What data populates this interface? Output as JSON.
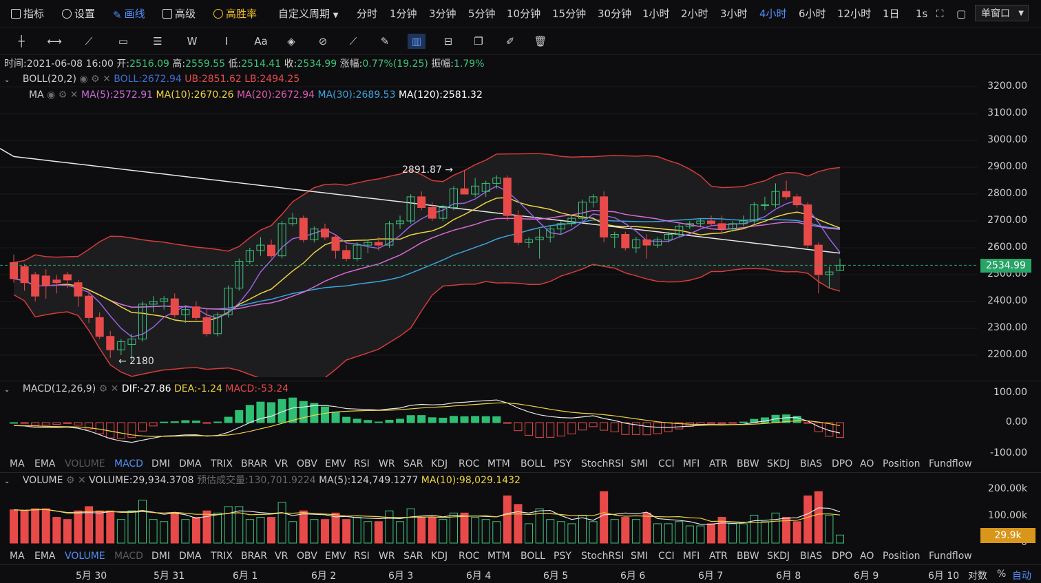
{
  "toolbar": {
    "indicators": "指标",
    "settings": "设置",
    "draw": "画线",
    "advanced": "高级",
    "winrate": "高胜率",
    "custom_period": "自定义周期",
    "periods": [
      "分时",
      "1分钟",
      "3分钟",
      "5分钟",
      "10分钟",
      "15分钟",
      "30分钟",
      "1小时",
      "2小时",
      "3小时",
      "4小时",
      "6小时",
      "12小时",
      "1日"
    ],
    "active_period": "4小时",
    "sec": "1s",
    "window_mode": "单窗口"
  },
  "ohlc": {
    "time_label": "时间:",
    "time": "2021-06-08 16:00",
    "open_label": "开:",
    "open": "2516.09",
    "high_label": "高:",
    "high": "2559.55",
    "low_label": "低:",
    "low": "2514.41",
    "close_label": "收:",
    "close": "2534.99",
    "change_label": "涨幅:",
    "change": "0.77%(19.25)",
    "amp_label": "振幅:",
    "amp": "1.79%"
  },
  "boll": {
    "name": "BOLL(20,2)",
    "boll": "BOLL:2672.94",
    "ub": "UB:2851.62",
    "lb": "LB:2494.25"
  },
  "ma": {
    "name": "MA",
    "ma5": "MA(5):2572.91",
    "ma10": "MA(10):2670.26",
    "ma20": "MA(20):2672.94",
    "ma30": "MA(30):2689.53",
    "ma120": "MA(120):2581.32"
  },
  "macd": {
    "name": "MACD(12,26,9)",
    "dif": "DIF:-27.86",
    "dea": "DEA:-1.24",
    "macd": "MACD:-53.24"
  },
  "volume": {
    "name": "VOLUME",
    "vol": "VOLUME:29,934.3708",
    "est": "预估成交量:130,701.9224",
    "ma5": "MA(5):124,749.1277",
    "ma10": "MA(10):98,029.1432"
  },
  "price_axis": [
    "3200.00",
    "3100.00",
    "3000.00",
    "2900.00",
    "2800.00",
    "2700.00",
    "2600.00",
    "2500.00",
    "2400.00",
    "2300.00",
    "2200.00"
  ],
  "current_price": "2534.99",
  "macd_axis": [
    "100.00",
    "0.00",
    "-100.00"
  ],
  "vol_axis": [
    "200.00k",
    "100.00k",
    "0"
  ],
  "vol_current": "29.9k",
  "annotations": {
    "high": "2891.87 →",
    "low": "← 2180"
  },
  "indicator_tabs": [
    "MA",
    "EMA",
    "VOLUME",
    "MACD",
    "DMI",
    "DMA",
    "TRIX",
    "BRAR",
    "VR",
    "OBV",
    "EMV",
    "RSI",
    "WR",
    "SAR",
    "KDJ",
    "ROC",
    "MTM",
    "BOLL",
    "PSY",
    "StochRSI",
    "SMI",
    "CCI",
    "MFI",
    "ATR",
    "BBW",
    "SKDJ",
    "BIAS",
    "DPO",
    "AO",
    "Position",
    "Fundflow"
  ],
  "dates": [
    "5月 30",
    "5月 31",
    "6月 1",
    "6月 2",
    "6月 3",
    "6月 4",
    "6月 5",
    "6月 6",
    "6月 7",
    "6月 8",
    "6月 9",
    "6月 10"
  ],
  "footer": {
    "log": "对数",
    "pct": "%",
    "auto": "自动"
  },
  "colors": {
    "up": "#3bc57c",
    "down": "#e84a4a",
    "accent": "#4f8ff7",
    "gold": "#f2c230"
  },
  "chart_data": {
    "type": "candlestick",
    "interval": "4h",
    "ylim": [
      2150,
      3250
    ],
    "candles": [
      [
        2545,
        2575,
        2470,
        2485
      ],
      [
        2530,
        2540,
        2440,
        2470
      ],
      [
        2500,
        2510,
        2400,
        2420
      ],
      [
        2495,
        2520,
        2410,
        2460
      ],
      [
        2480,
        2500,
        2430,
        2470
      ],
      [
        2500,
        2510,
        2450,
        2480
      ],
      [
        2470,
        2480,
        2380,
        2420
      ],
      [
        2420,
        2440,
        2320,
        2340
      ],
      [
        2340,
        2360,
        2260,
        2270
      ],
      [
        2270,
        2290,
        2190,
        2220
      ],
      [
        2220,
        2260,
        2200,
        2250
      ],
      [
        2240,
        2280,
        2180,
        2260
      ],
      [
        2260,
        2400,
        2250,
        2390
      ],
      [
        2390,
        2420,
        2360,
        2400
      ],
      [
        2400,
        2420,
        2370,
        2410
      ],
      [
        2410,
        2430,
        2340,
        2350
      ],
      [
        2350,
        2380,
        2320,
        2370
      ],
      [
        2380,
        2400,
        2330,
        2340
      ],
      [
        2340,
        2370,
        2270,
        2280
      ],
      [
        2280,
        2360,
        2270,
        2350
      ],
      [
        2350,
        2460,
        2340,
        2450
      ],
      [
        2450,
        2560,
        2440,
        2550
      ],
      [
        2550,
        2600,
        2540,
        2590
      ],
      [
        2590,
        2640,
        2570,
        2610
      ],
      [
        2610,
        2630,
        2560,
        2570
      ],
      [
        2570,
        2700,
        2560,
        2690
      ],
      [
        2690,
        2730,
        2680,
        2710
      ],
      [
        2710,
        2720,
        2620,
        2630
      ],
      [
        2630,
        2680,
        2620,
        2670
      ],
      [
        2670,
        2690,
        2630,
        2640
      ],
      [
        2640,
        2650,
        2560,
        2590
      ],
      [
        2590,
        2610,
        2550,
        2560
      ],
      [
        2560,
        2620,
        2550,
        2610
      ],
      [
        2610,
        2630,
        2580,
        2620
      ],
      [
        2620,
        2640,
        2590,
        2610
      ],
      [
        2610,
        2700,
        2600,
        2690
      ],
      [
        2690,
        2720,
        2670,
        2700
      ],
      [
        2700,
        2800,
        2690,
        2790
      ],
      [
        2790,
        2810,
        2740,
        2750
      ],
      [
        2750,
        2770,
        2700,
        2710
      ],
      [
        2710,
        2760,
        2700,
        2750
      ],
      [
        2750,
        2830,
        2740,
        2820
      ],
      [
        2820,
        2890,
        2800,
        2800
      ],
      [
        2800,
        2860,
        2790,
        2830
      ],
      [
        2810,
        2850,
        2790,
        2840
      ],
      [
        2840,
        2870,
        2820,
        2860
      ],
      [
        2860,
        2870,
        2700,
        2720
      ],
      [
        2720,
        2740,
        2610,
        2620
      ],
      [
        2620,
        2640,
        2600,
        2630
      ],
      [
        2630,
        2670,
        2560,
        2640
      ],
      [
        2640,
        2680,
        2620,
        2670
      ],
      [
        2670,
        2700,
        2650,
        2690
      ],
      [
        2690,
        2720,
        2680,
        2710
      ],
      [
        2710,
        2780,
        2700,
        2770
      ],
      [
        2770,
        2800,
        2750,
        2790
      ],
      [
        2790,
        2810,
        2620,
        2640
      ],
      [
        2640,
        2660,
        2600,
        2650
      ],
      [
        2650,
        2660,
        2590,
        2600
      ],
      [
        2600,
        2640,
        2580,
        2630
      ],
      [
        2630,
        2650,
        2560,
        2610
      ],
      [
        2610,
        2640,
        2600,
        2630
      ],
      [
        2630,
        2660,
        2620,
        2650
      ],
      [
        2650,
        2690,
        2640,
        2680
      ],
      [
        2680,
        2700,
        2670,
        2690
      ],
      [
        2690,
        2710,
        2680,
        2700
      ],
      [
        2700,
        2720,
        2680,
        2690
      ],
      [
        2690,
        2720,
        2650,
        2670
      ],
      [
        2670,
        2700,
        2660,
        2690
      ],
      [
        2690,
        2720,
        2680,
        2700
      ],
      [
        2700,
        2770,
        2690,
        2760
      ],
      [
        2760,
        2790,
        2740,
        2760
      ],
      [
        2760,
        2840,
        2750,
        2810
      ],
      [
        2810,
        2850,
        2780,
        2790
      ],
      [
        2790,
        2800,
        2750,
        2760
      ],
      [
        2760,
        2770,
        2600,
        2610
      ],
      [
        2610,
        2620,
        2430,
        2500
      ],
      [
        2500,
        2530,
        2450,
        2510
      ],
      [
        2516,
        2560,
        2514,
        2535
      ]
    ]
  }
}
